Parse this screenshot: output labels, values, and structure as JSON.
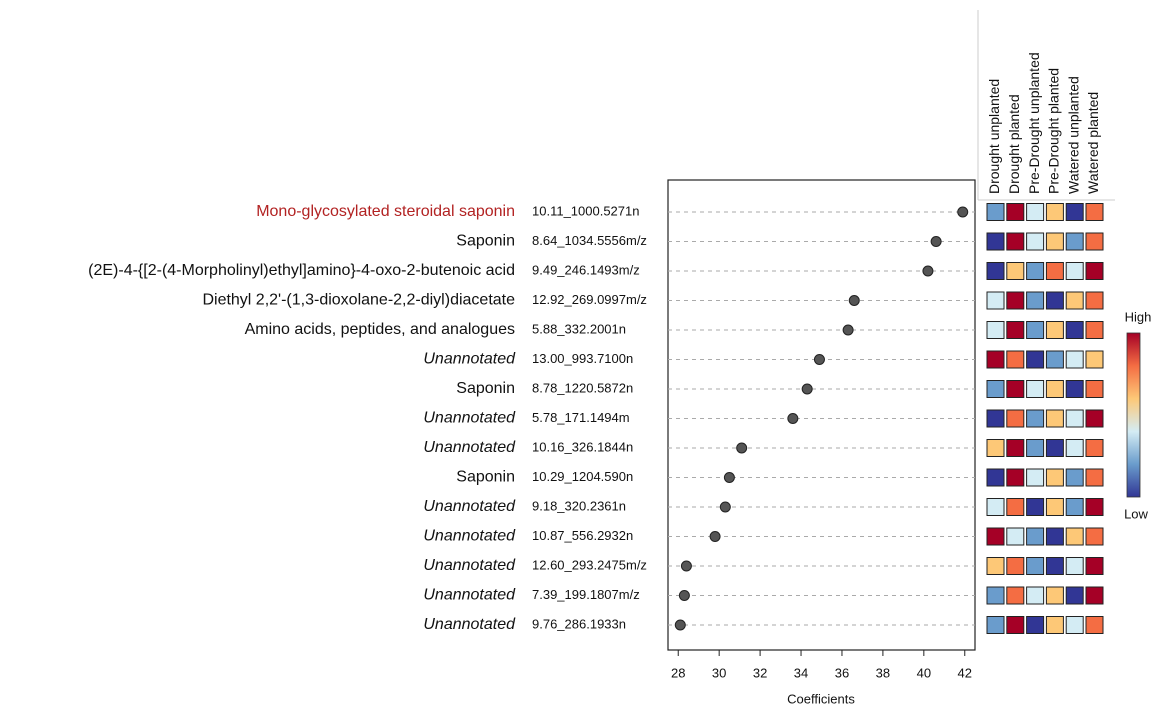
{
  "chart_data": {
    "type": "dot",
    "categories": [
      "Mono-glycosylated steroidal saponin",
      "Saponin",
      "(2E)-4-{[2-(4-Morpholinyl)ethyl]amino}-4-oxo-2-butenoic acid",
      "Diethyl 2,2'-(1,3-dioxolane-2,2-diyl)diacetate",
      "Amino acids, peptides, and analogues",
      "Unannotated",
      "Saponin",
      "Unannotated",
      "Unannotated",
      "Saponin",
      "Unannotated",
      "Unannotated",
      "Unannotated",
      "Unannotated",
      "Unannotated"
    ],
    "italic": [
      false,
      false,
      false,
      false,
      false,
      true,
      false,
      true,
      true,
      false,
      true,
      true,
      true,
      true,
      true
    ],
    "highlight": [
      0
    ],
    "highlight_color": "#b22222",
    "ids": [
      "10.11_1000.5271n",
      "8.64_1034.5556m/z",
      "9.49_246.1493m/z",
      "12.92_269.0997m/z",
      "5.88_332.2001n",
      "13.00_993.7100n",
      "8.78_1220.5872n",
      "5.78_171.1494m",
      "10.16_326.1844n",
      "10.29_1204.590n",
      "9.18_320.2361n",
      "10.87_556.2932n",
      "12.60_293.2475m/z",
      "7.39_199.1807m/z",
      "9.76_286.1933n"
    ],
    "values": [
      41.9,
      40.6,
      40.2,
      36.6,
      36.3,
      34.9,
      34.3,
      33.6,
      31.1,
      30.5,
      30.3,
      29.8,
      28.4,
      28.3,
      28.1
    ],
    "color": "#555555",
    "xlabel": "Coefficients",
    "xlim": [
      27.5,
      42.5
    ],
    "xticks": [
      28,
      30,
      32,
      34,
      36,
      38,
      40,
      42
    ],
    "grid": true,
    "heatmap": {
      "columns": [
        "Drought unplanted",
        "Drought planted",
        "Pre-Drought unplanted",
        "Pre-Drought planted",
        "Watered unplanted",
        "Watered planted"
      ],
      "colors": [
        [
          "#6a9ccc",
          "#a50026",
          "#d4ecf4",
          "#fdc877",
          "#313695",
          "#f46d43"
        ],
        [
          "#313695",
          "#a50026",
          "#d4ecf4",
          "#fdc877",
          "#6a9ccc",
          "#f46d43"
        ],
        [
          "#313695",
          "#fdc877",
          "#6a9ccc",
          "#f46d43",
          "#d4ecf4",
          "#a50026"
        ],
        [
          "#d4ecf4",
          "#a50026",
          "#6a9ccc",
          "#313695",
          "#fdc877",
          "#f46d43"
        ],
        [
          "#d4ecf4",
          "#a50026",
          "#6a9ccc",
          "#fdc877",
          "#313695",
          "#f46d43"
        ],
        [
          "#a50026",
          "#f46d43",
          "#313695",
          "#6a9ccc",
          "#d4ecf4",
          "#fdc877"
        ],
        [
          "#6a9ccc",
          "#a50026",
          "#d4ecf4",
          "#fdc877",
          "#313695",
          "#f46d43"
        ],
        [
          "#313695",
          "#f46d43",
          "#6a9ccc",
          "#fdc877",
          "#d4ecf4",
          "#a50026"
        ],
        [
          "#fdc877",
          "#a50026",
          "#6a9ccc",
          "#313695",
          "#d4ecf4",
          "#f46d43"
        ],
        [
          "#313695",
          "#a50026",
          "#d4ecf4",
          "#fdc877",
          "#6a9ccc",
          "#f46d43"
        ],
        [
          "#d4ecf4",
          "#f46d43",
          "#313695",
          "#fdc877",
          "#6a9ccc",
          "#a50026"
        ],
        [
          "#a50026",
          "#d4ecf4",
          "#6a9ccc",
          "#313695",
          "#fdc877",
          "#f46d43"
        ],
        [
          "#fdc877",
          "#f46d43",
          "#6a9ccc",
          "#313695",
          "#d4ecf4",
          "#a50026"
        ],
        [
          "#6a9ccc",
          "#f46d43",
          "#d4ecf4",
          "#fdc877",
          "#313695",
          "#a50026"
        ],
        [
          "#6a9ccc",
          "#a50026",
          "#313695",
          "#fdc877",
          "#d4ecf4",
          "#f46d43"
        ]
      ]
    },
    "colorbar": {
      "high": "High",
      "low": "Low",
      "colors": [
        "#a50026",
        "#f46d43",
        "#fdc877",
        "#d4ecf4",
        "#6a9ccc",
        "#313695"
      ]
    }
  }
}
